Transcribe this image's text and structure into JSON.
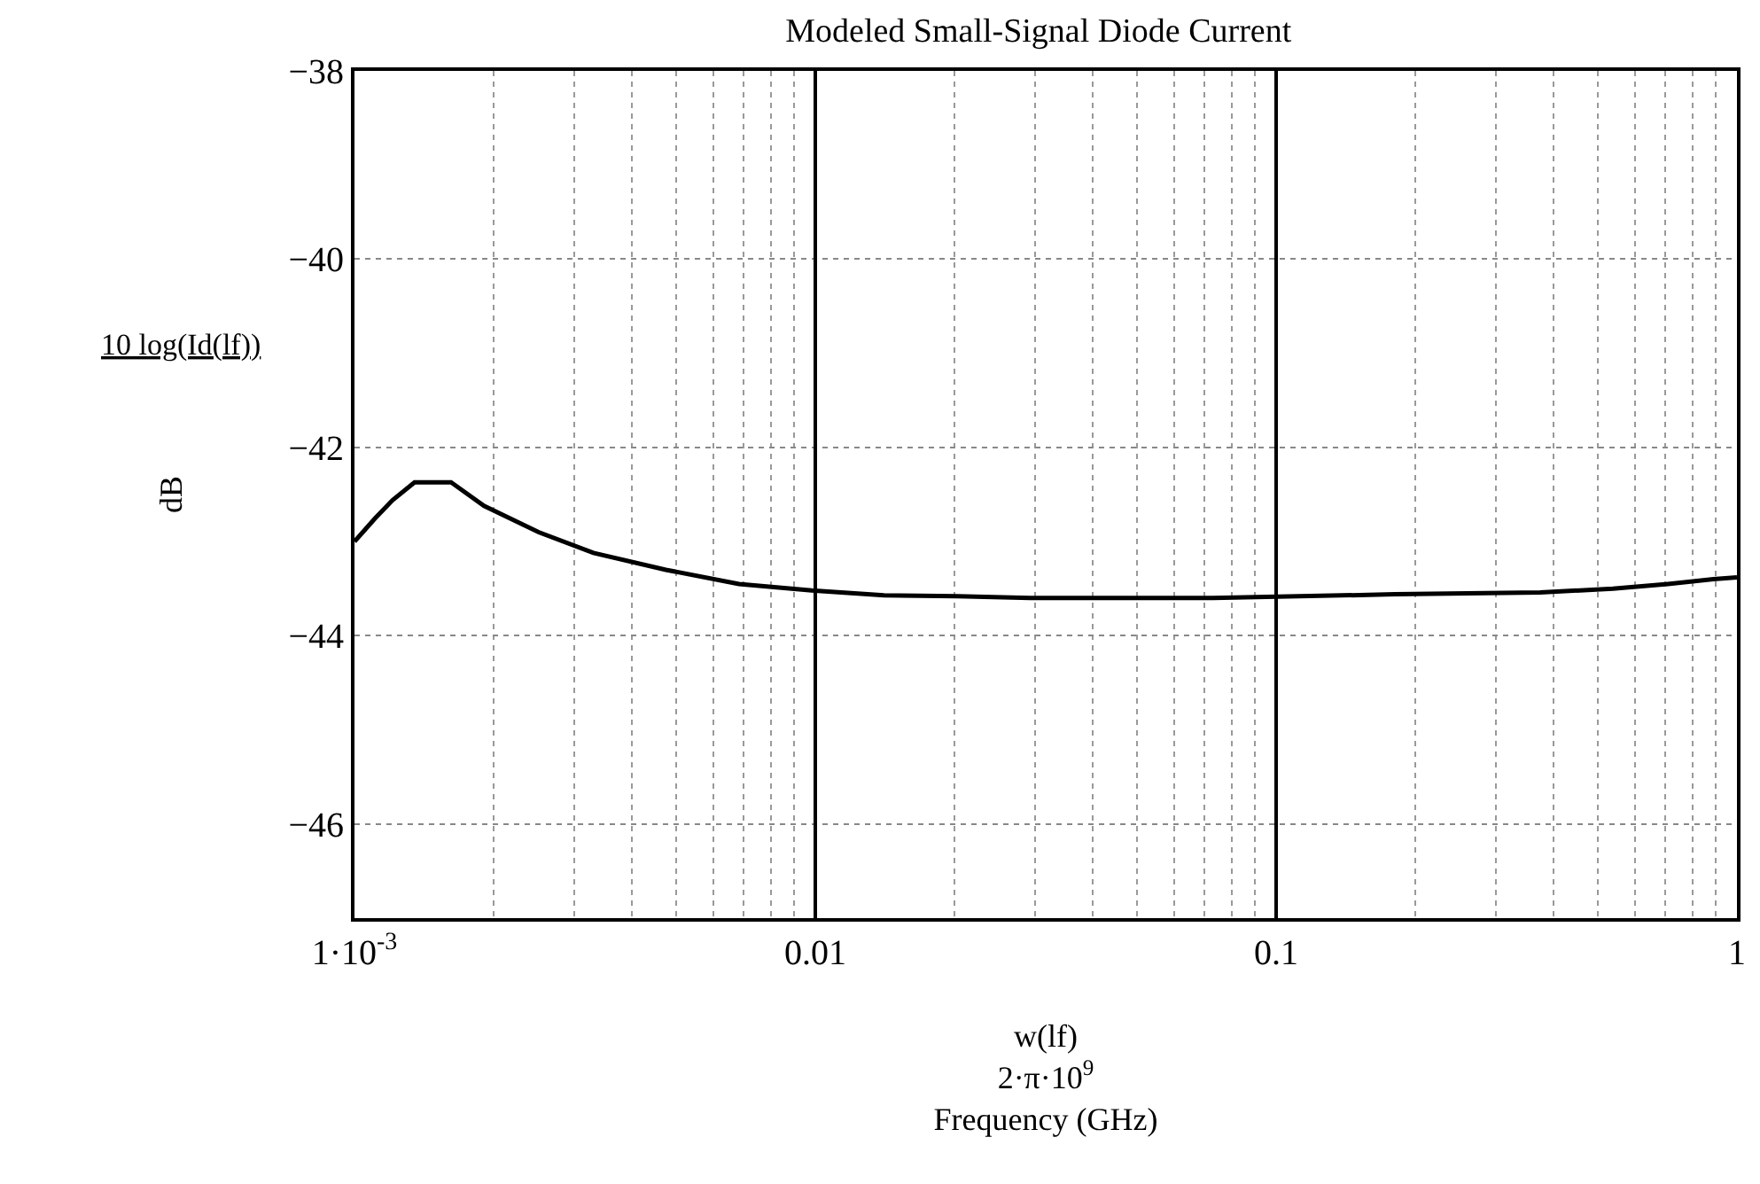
{
  "chart_data": {
    "type": "line",
    "title": "Modeled Small-Signal Diode Current",
    "xlabel": "w(lf)\n2·π·10$^{9}$\nFrequency (GHz)",
    "ylabel": "dB",
    "annotations": [
      "10 log(Id(lf))"
    ],
    "log": "x",
    "grid": true,
    "marker": "none",
    "line_style": "solid",
    "xlim": [
      0.001,
      1
    ],
    "xticks": [
      {
        "value": 0.001,
        "label": "1·10$^{-3}$"
      },
      0.01,
      0.1,
      1
    ],
    "ylim": [
      -47,
      -38
    ],
    "yticks": [
      -38,
      -40,
      -42,
      -44,
      -46
    ],
    "series": [
      {
        "color": "#000000",
        "x": [
          0.001,
          0.00111,
          0.00121,
          0.00135,
          0.00162,
          0.00191,
          0.00251,
          0.0033,
          0.00474,
          0.00683,
          0.00982,
          0.0141,
          0.0203,
          0.0293,
          0.0728,
          0.181,
          0.374,
          0.538,
          0.708,
          0.889,
          1
        ],
        "values": [
          -43.0,
          -42.75,
          -42.56,
          -42.37,
          -42.37,
          -42.62,
          -42.9,
          -43.12,
          -43.3,
          -43.45,
          -43.52,
          -43.57,
          -43.58,
          -43.6,
          -43.6,
          -43.56,
          -43.54,
          -43.5,
          -43.45,
          -43.4,
          -43.38
        ]
      }
    ]
  }
}
